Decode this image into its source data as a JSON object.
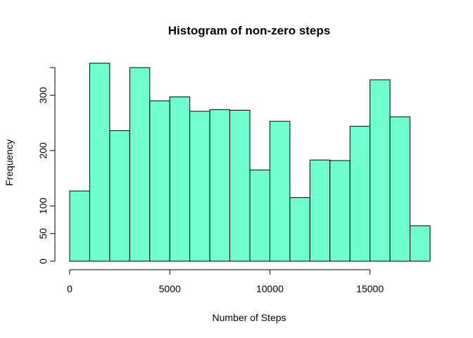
{
  "chart_data": {
    "type": "bar",
    "title": "Histogram of non-zero steps",
    "xlabel": "Number of Steps",
    "ylabel": "Frequency",
    "bin_width": 1000,
    "bins": [
      {
        "start": 0,
        "end": 1000,
        "count": 127
      },
      {
        "start": 1000,
        "end": 2000,
        "count": 358
      },
      {
        "start": 2000,
        "end": 3000,
        "count": 236
      },
      {
        "start": 3000,
        "end": 4000,
        "count": 350
      },
      {
        "start": 4000,
        "end": 5000,
        "count": 290
      },
      {
        "start": 5000,
        "end": 6000,
        "count": 297
      },
      {
        "start": 6000,
        "end": 7000,
        "count": 271
      },
      {
        "start": 7000,
        "end": 8000,
        "count": 274
      },
      {
        "start": 8000,
        "end": 9000,
        "count": 273
      },
      {
        "start": 9000,
        "end": 10000,
        "count": 165
      },
      {
        "start": 10000,
        "end": 11000,
        "count": 253
      },
      {
        "start": 11000,
        "end": 12000,
        "count": 115
      },
      {
        "start": 12000,
        "end": 13000,
        "count": 183
      },
      {
        "start": 13000,
        "end": 14000,
        "count": 182
      },
      {
        "start": 14000,
        "end": 15000,
        "count": 244
      },
      {
        "start": 15000,
        "end": 16000,
        "count": 328
      },
      {
        "start": 16000,
        "end": 17000,
        "count": 261
      },
      {
        "start": 17000,
        "end": 18000,
        "count": 64
      }
    ],
    "xticks": [
      0,
      5000,
      10000,
      15000
    ],
    "yticks": [
      0,
      50,
      100,
      200,
      300
    ],
    "xlim": [
      0,
      18000
    ],
    "ylim": [
      0,
      350
    ],
    "bar_color": "#70ffcf",
    "bar_edge_color": "#000000",
    "grid": false
  }
}
